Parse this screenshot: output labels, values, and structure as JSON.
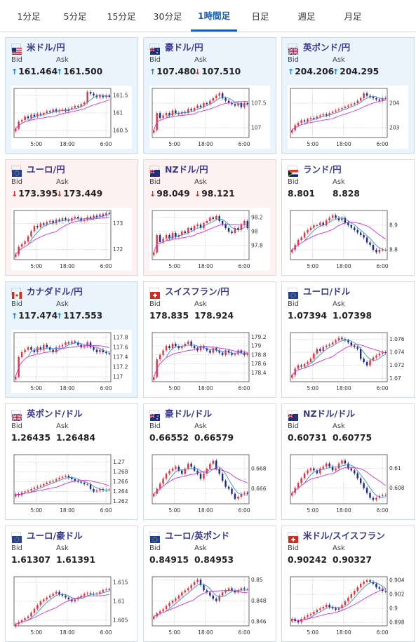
{
  "tabs": [
    {
      "label": "1分足",
      "active": false
    },
    {
      "label": "5分足",
      "active": false
    },
    {
      "label": "15分足",
      "active": false
    },
    {
      "label": "30分足",
      "active": false
    },
    {
      "label": "1時間足",
      "active": true
    },
    {
      "label": "日足",
      "active": false
    },
    {
      "label": "週足",
      "active": false
    },
    {
      "label": "月足",
      "active": false
    }
  ],
  "labels": {
    "bid": "Bid",
    "ask": "Ask"
  },
  "xticks": [
    "5:00",
    "18:00",
    "6:00"
  ],
  "colors": {
    "up": "#1b7bd3",
    "down": "#d12c2c",
    "bull": "#e8323c",
    "bear": "#1e2a8a",
    "ma_short": "#3a8dd8",
    "ma_long": "#d830d8"
  },
  "cards": [
    {
      "pair": "米ドル/円",
      "flag": "us",
      "bg": "blue",
      "bid": "161.464",
      "ask": "161.500",
      "bid_dir": "up",
      "ask_dir": "up",
      "chart_data": {
        "type": "candlestick",
        "ylim": [
          160.3,
          161.7
        ],
        "yticks": [
          "161.5",
          "161",
          "160.5"
        ],
        "ytick_values": [
          161.5,
          161.0,
          160.5
        ],
        "closes": [
          160.55,
          160.75,
          160.8,
          160.9,
          160.85,
          160.95,
          160.9,
          160.98,
          160.95,
          161.0,
          161.05,
          161.02,
          161.1,
          161.05,
          161.08,
          161.1,
          161.05,
          161.12,
          161.15,
          161.2,
          161.18,
          161.25,
          161.3,
          161.6,
          161.55,
          161.5,
          161.45,
          161.5,
          161.45,
          161.5,
          161.46
        ]
      }
    },
    {
      "pair": "豪ドル/円",
      "flag": "au",
      "bg": "blue",
      "bid": "107.480",
      "ask": "107.510",
      "bid_dir": "up",
      "ask_dir": "down",
      "chart_data": {
        "type": "candlestick",
        "ylim": [
          106.8,
          107.8
        ],
        "yticks": [
          "107.5",
          "107"
        ],
        "ytick_values": [
          107.5,
          107.0
        ],
        "closes": [
          106.95,
          107.3,
          107.2,
          107.25,
          107.3,
          107.25,
          107.35,
          107.3,
          107.28,
          107.32,
          107.3,
          107.38,
          107.35,
          107.4,
          107.45,
          107.42,
          107.5,
          107.48,
          107.55,
          107.6,
          107.65,
          107.7,
          107.6,
          107.55,
          107.5,
          107.48,
          107.45,
          107.5,
          107.42,
          107.5,
          107.48
        ]
      }
    },
    {
      "pair": "英ポンド/円",
      "flag": "gb",
      "bg": "blue",
      "bid": "204.206",
      "ask": "204.295",
      "bid_dir": "up",
      "ask_dir": "up",
      "chart_data": {
        "type": "candlestick",
        "ylim": [
          202.6,
          204.6
        ],
        "yticks": [
          "204",
          "203"
        ],
        "ytick_values": [
          204.0,
          203.0
        ],
        "closes": [
          202.9,
          203.1,
          203.2,
          203.3,
          203.25,
          203.35,
          203.4,
          203.38,
          203.45,
          203.5,
          203.55,
          203.5,
          203.6,
          203.65,
          203.7,
          203.75,
          203.8,
          203.85,
          203.9,
          203.95,
          204.0,
          204.1,
          204.2,
          204.4,
          204.3,
          204.25,
          204.2,
          204.15,
          204.1,
          204.2,
          204.21
        ]
      }
    },
    {
      "pair": "ユーロ/円",
      "flag": "eu",
      "bg": "pink",
      "bid": "173.395",
      "ask": "173.449",
      "bid_dir": "down",
      "ask_dir": "down",
      "chart_data": {
        "type": "candlestick",
        "ylim": [
          171.6,
          173.5
        ],
        "yticks": [
          "173",
          "172"
        ],
        "ytick_values": [
          173.0,
          172.0
        ],
        "closes": [
          171.8,
          172.1,
          172.2,
          172.3,
          172.5,
          172.7,
          172.9,
          172.85,
          173.0,
          172.95,
          173.05,
          173.1,
          173.0,
          173.15,
          173.1,
          173.2,
          173.15,
          173.1,
          173.2,
          173.25,
          173.2,
          173.1,
          173.15,
          173.25,
          173.2,
          173.3,
          173.25,
          173.35,
          173.3,
          173.4,
          173.39
        ]
      }
    },
    {
      "pair": "NZドル/円",
      "flag": "nz",
      "bg": "pink",
      "bid": "98.049",
      "ask": "98.121",
      "bid_dir": "down",
      "ask_dir": "down",
      "chart_data": {
        "type": "candlestick",
        "ylim": [
          97.6,
          98.3
        ],
        "yticks": [
          "98.2",
          "98",
          "97.8"
        ],
        "ytick_values": [
          98.2,
          98.0,
          97.8
        ],
        "closes": [
          97.7,
          97.95,
          97.85,
          97.9,
          97.95,
          97.9,
          97.98,
          97.92,
          97.95,
          98.0,
          97.98,
          98.05,
          98.02,
          98.08,
          98.1,
          98.05,
          98.12,
          98.15,
          98.2,
          98.18,
          98.22,
          98.15,
          98.1,
          98.05,
          98.0,
          97.98,
          98.05,
          98.02,
          98.1,
          98.15,
          98.05
        ]
      }
    },
    {
      "pair": "ランド/円",
      "flag": "za",
      "bg": "white",
      "bid": "8.801",
      "ask": "8.828",
      "bid_dir": "none",
      "ask_dir": "none",
      "chart_data": {
        "type": "candlestick",
        "ylim": [
          8.76,
          8.96
        ],
        "yticks": [
          "8.9",
          "8.8"
        ],
        "ytick_values": [
          8.9,
          8.8
        ],
        "closes": [
          8.8,
          8.82,
          8.84,
          8.85,
          8.87,
          8.88,
          8.89,
          8.9,
          8.9,
          8.91,
          8.9,
          8.92,
          8.93,
          8.94,
          8.93,
          8.92,
          8.93,
          8.91,
          8.9,
          8.89,
          8.88,
          8.87,
          8.86,
          8.85,
          8.83,
          8.82,
          8.8,
          8.79,
          8.8,
          8.8,
          8.8
        ]
      }
    },
    {
      "pair": "カナダドル/円",
      "flag": "ca",
      "bg": "blue",
      "bid": "117.474",
      "ask": "117.553",
      "bid_dir": "up",
      "ask_dir": "up",
      "chart_data": {
        "type": "candlestick",
        "ylim": [
          116.9,
          117.9
        ],
        "yticks": [
          "117.8",
          "117.6",
          "117.4",
          "117.2",
          "117"
        ],
        "ytick_values": [
          117.8,
          117.6,
          117.4,
          117.2,
          117.0
        ],
        "closes": [
          117.0,
          117.4,
          117.5,
          117.55,
          117.6,
          117.55,
          117.5,
          117.6,
          117.55,
          117.65,
          117.6,
          117.55,
          117.5,
          117.6,
          117.62,
          117.65,
          117.7,
          117.68,
          117.72,
          117.7,
          117.65,
          117.6,
          117.62,
          117.7,
          117.6,
          117.55,
          117.5,
          117.55,
          117.5,
          117.48,
          117.47
        ]
      }
    },
    {
      "pair": "スイスフラン/円",
      "flag": "ch",
      "bg": "white",
      "bid": "178.835",
      "ask": "178.924",
      "bid_dir": "none",
      "ask_dir": "none",
      "chart_data": {
        "type": "candlestick",
        "ylim": [
          178.2,
          179.3
        ],
        "yticks": [
          "179.2",
          "179",
          "178.8",
          "178.6",
          "178.4"
        ],
        "ytick_values": [
          179.2,
          179.0,
          178.8,
          178.6,
          178.4
        ],
        "closes": [
          178.3,
          178.7,
          178.8,
          178.9,
          179.0,
          178.95,
          179.05,
          179.0,
          178.95,
          179.0,
          179.05,
          179.1,
          179.0,
          178.95,
          178.9,
          179.0,
          178.95,
          178.9,
          178.85,
          178.95,
          178.9,
          178.85,
          178.8,
          178.9,
          178.85,
          178.8,
          178.82,
          178.9,
          178.85,
          178.8,
          178.83
        ]
      }
    },
    {
      "pair": "ユーロ/ドル",
      "flag": "eu",
      "bg": "white",
      "bid": "1.07394",
      "ask": "1.07398",
      "bid_dir": "none",
      "ask_dir": "none",
      "chart_data": {
        "type": "candlestick",
        "ylim": [
          1.0695,
          1.077
        ],
        "yticks": [
          "1.076",
          "1.074",
          "1.072",
          "1.07"
        ],
        "ytick_values": [
          1.076,
          1.074,
          1.072,
          1.07
        ],
        "closes": [
          1.0705,
          1.0715,
          1.072,
          1.0718,
          1.0722,
          1.0725,
          1.073,
          1.0738,
          1.0745,
          1.0742,
          1.0748,
          1.075,
          1.0752,
          1.0755,
          1.0758,
          1.0762,
          1.076,
          1.0758,
          1.0755,
          1.075,
          1.0748,
          1.0745,
          1.073,
          1.0725,
          1.072,
          1.0728,
          1.0732,
          1.0735,
          1.0738,
          1.074,
          1.0739
        ]
      }
    },
    {
      "pair": "英ポンド/ドル",
      "flag": "gb",
      "bg": "white",
      "bid": "1.26435",
      "ask": "1.26484",
      "bid_dir": "none",
      "ask_dir": "none",
      "chart_data": {
        "type": "candlestick",
        "ylim": [
          1.2615,
          1.2715
        ],
        "yticks": [
          "1.27",
          "1.268",
          "1.266",
          "1.264",
          "1.262"
        ],
        "ytick_values": [
          1.27,
          1.268,
          1.266,
          1.264,
          1.262
        ],
        "closes": [
          1.2635,
          1.2632,
          1.2638,
          1.264,
          1.2642,
          1.2645,
          1.2648,
          1.265,
          1.2652,
          1.2655,
          1.2658,
          1.266,
          1.2662,
          1.2665,
          1.2668,
          1.267,
          1.2672,
          1.2668,
          1.2665,
          1.2662,
          1.266,
          1.2658,
          1.2655,
          1.2655,
          1.2645,
          1.264,
          1.2642,
          1.2645,
          1.2643,
          1.2644,
          1.2644
        ]
      }
    },
    {
      "pair": "豪ドル/ドル",
      "flag": "au",
      "bg": "white",
      "bid": "0.66552",
      "ask": "0.66579",
      "bid_dir": "none",
      "ask_dir": "none",
      "chart_data": {
        "type": "candlestick",
        "ylim": [
          0.6645,
          0.6694
        ],
        "yticks": [
          "0.668",
          "0.666"
        ],
        "ytick_values": [
          0.668,
          0.666
        ],
        "closes": [
          0.6655,
          0.666,
          0.6665,
          0.667,
          0.6675,
          0.6678,
          0.668,
          0.6682,
          0.6678,
          0.6675,
          0.668,
          0.6685,
          0.6682,
          0.6678,
          0.6675,
          0.667,
          0.6675,
          0.668,
          0.6685,
          0.6688,
          0.668,
          0.6675,
          0.6668,
          0.6662,
          0.666,
          0.6655,
          0.665,
          0.6652,
          0.6655,
          0.6656,
          0.6655
        ]
      }
    },
    {
      "pair": "NZドル/ドル",
      "flag": "nz",
      "bg": "white",
      "bid": "0.60731",
      "ask": "0.60775",
      "bid_dir": "none",
      "ask_dir": "none",
      "chart_data": {
        "type": "candlestick",
        "ylim": [
          0.6064,
          0.6114
        ],
        "yticks": [
          "0.61",
          "0.608"
        ],
        "ytick_values": [
          0.61,
          0.608
        ],
        "closes": [
          0.6075,
          0.608,
          0.6085,
          0.609,
          0.6095,
          0.6098,
          0.61,
          0.6098,
          0.6095,
          0.61,
          0.6102,
          0.6105,
          0.6102,
          0.6098,
          0.61,
          0.6105,
          0.6108,
          0.6105,
          0.61,
          0.6098,
          0.6095,
          0.609,
          0.6085,
          0.608,
          0.6075,
          0.607,
          0.6068,
          0.607,
          0.6072,
          0.6073,
          0.6073
        ]
      }
    },
    {
      "pair": "ユーロ/豪ドル",
      "flag": "eu",
      "bg": "white",
      "bid": "1.61307",
      "ask": "1.61391",
      "bid_dir": "none",
      "ask_dir": "none",
      "chart_data": {
        "type": "candlestick",
        "ylim": [
          1.6035,
          1.6165
        ],
        "yticks": [
          "1.615",
          "1.61",
          "1.605"
        ],
        "ytick_values": [
          1.615,
          1.61,
          1.605
        ],
        "closes": [
          1.604,
          1.6045,
          1.605,
          1.6055,
          1.606,
          1.607,
          1.608,
          1.609,
          1.61,
          1.6105,
          1.611,
          1.6115,
          1.612,
          1.6125,
          1.6118,
          1.6115,
          1.611,
          1.6105,
          1.61,
          1.6105,
          1.611,
          1.6115,
          1.612,
          1.6122,
          1.612,
          1.6118,
          1.612,
          1.6125,
          1.613,
          1.6132,
          1.6131
        ]
      }
    },
    {
      "pair": "ユーロ/英ポンド",
      "flag": "eu",
      "bg": "white",
      "bid": "0.84915",
      "ask": "0.84953",
      "bid_dir": "none",
      "ask_dir": "none",
      "chart_data": {
        "type": "candlestick",
        "ylim": [
          0.8456,
          0.8503
        ],
        "yticks": [
          "0.85",
          "0.848",
          "0.846"
        ],
        "ytick_values": [
          0.85,
          0.848,
          0.846
        ],
        "closes": [
          0.8465,
          0.8468,
          0.847,
          0.8472,
          0.8475,
          0.8478,
          0.848,
          0.8482,
          0.8485,
          0.8488,
          0.849,
          0.8492,
          0.8495,
          0.8498,
          0.85,
          0.8495,
          0.849,
          0.8488,
          0.8485,
          0.8482,
          0.848,
          0.8485,
          0.8488,
          0.849,
          0.8492,
          0.849,
          0.8488,
          0.849,
          0.8492,
          0.8491,
          0.8491
        ]
      }
    },
    {
      "pair": "米ドル/スイスフラン",
      "flag": "ch",
      "bg": "white",
      "bid": "0.90242",
      "ask": "0.90327",
      "bid_dir": "none",
      "ask_dir": "none",
      "chart_data": {
        "type": "candlestick",
        "ylim": [
          0.8975,
          0.9045
        ],
        "yticks": [
          "0.904",
          "0.902",
          "0.9",
          "0.898"
        ],
        "ytick_values": [
          0.904,
          0.902,
          0.9,
          0.898
        ],
        "closes": [
          0.8985,
          0.8982,
          0.898,
          0.8985,
          0.8988,
          0.899,
          0.8992,
          0.8995,
          0.8998,
          0.9,
          0.9002,
          0.9005,
          0.9002,
          0.9,
          0.8998,
          0.9,
          0.9005,
          0.901,
          0.9015,
          0.902,
          0.9025,
          0.903,
          0.9035,
          0.9038,
          0.904,
          0.9038,
          0.9035,
          0.903,
          0.9028,
          0.9025,
          0.9024
        ]
      }
    }
  ]
}
